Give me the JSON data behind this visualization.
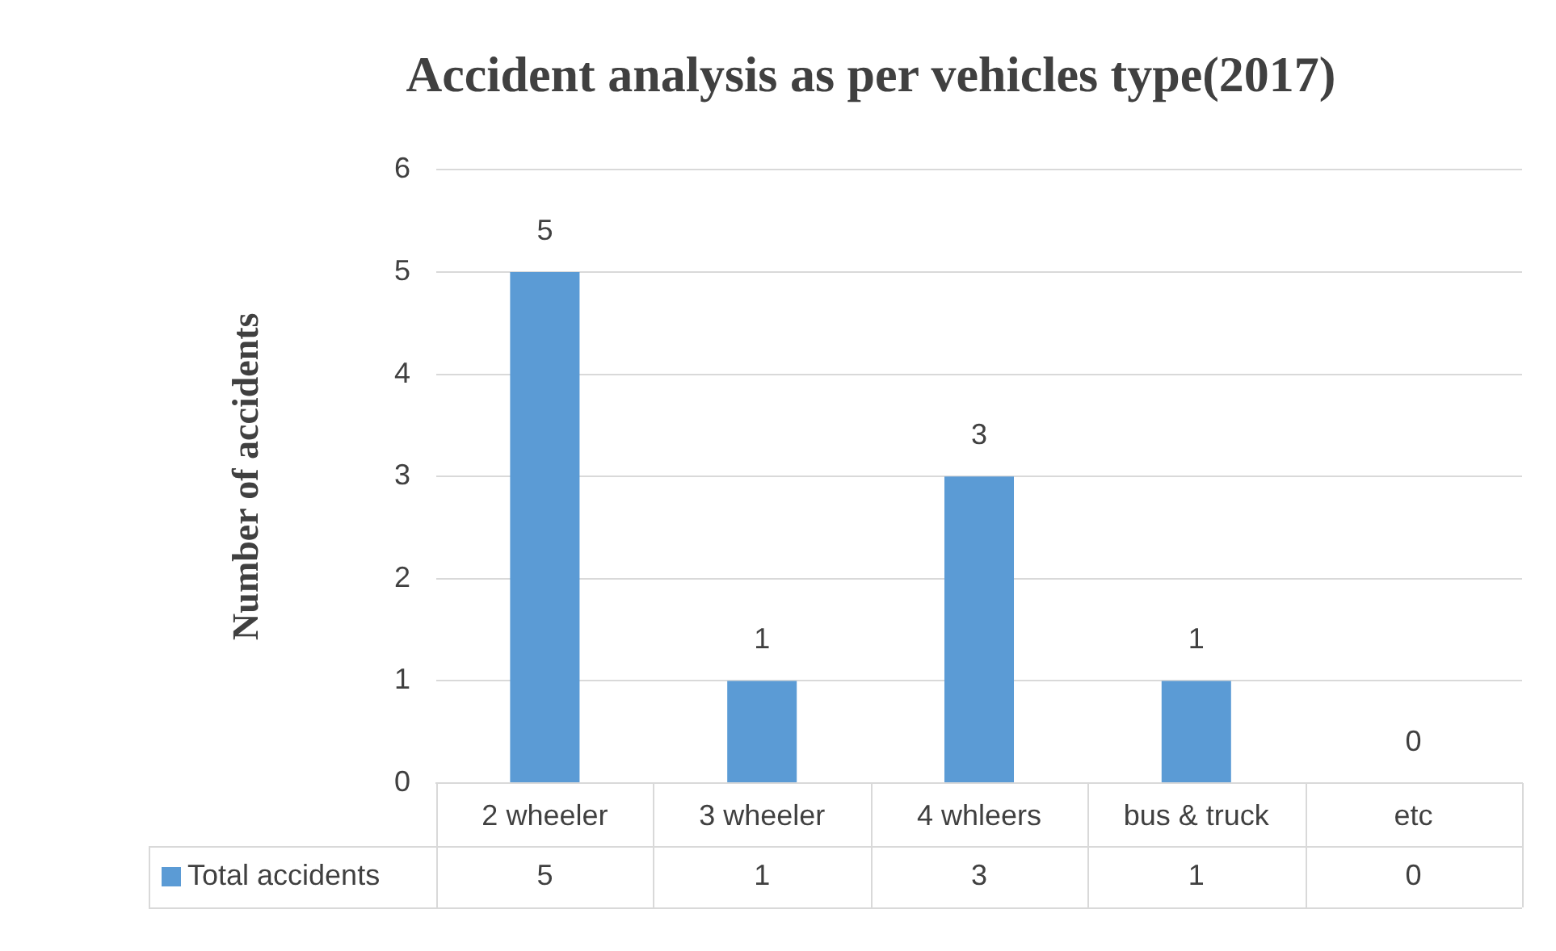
{
  "chart_data": {
    "type": "bar",
    "title": "Accident analysis as per vehicles type(2017)",
    "ylabel": "Number of accidents",
    "categories": [
      "2 wheeler",
      "3 wheeler",
      "4 whleers",
      "bus & truck",
      "etc"
    ],
    "series": [
      {
        "name": "Total accidents",
        "color": "#5b9bd5",
        "values": [
          5,
          1,
          3,
          1,
          0
        ]
      }
    ],
    "annotations": [
      "5",
      "1",
      "3",
      "1",
      "0"
    ],
    "ylim": [
      0,
      6
    ],
    "yticks": [
      0,
      1,
      2,
      3,
      4,
      5,
      6
    ],
    "grid": "y",
    "data_labels": true,
    "legend": "bottom"
  }
}
